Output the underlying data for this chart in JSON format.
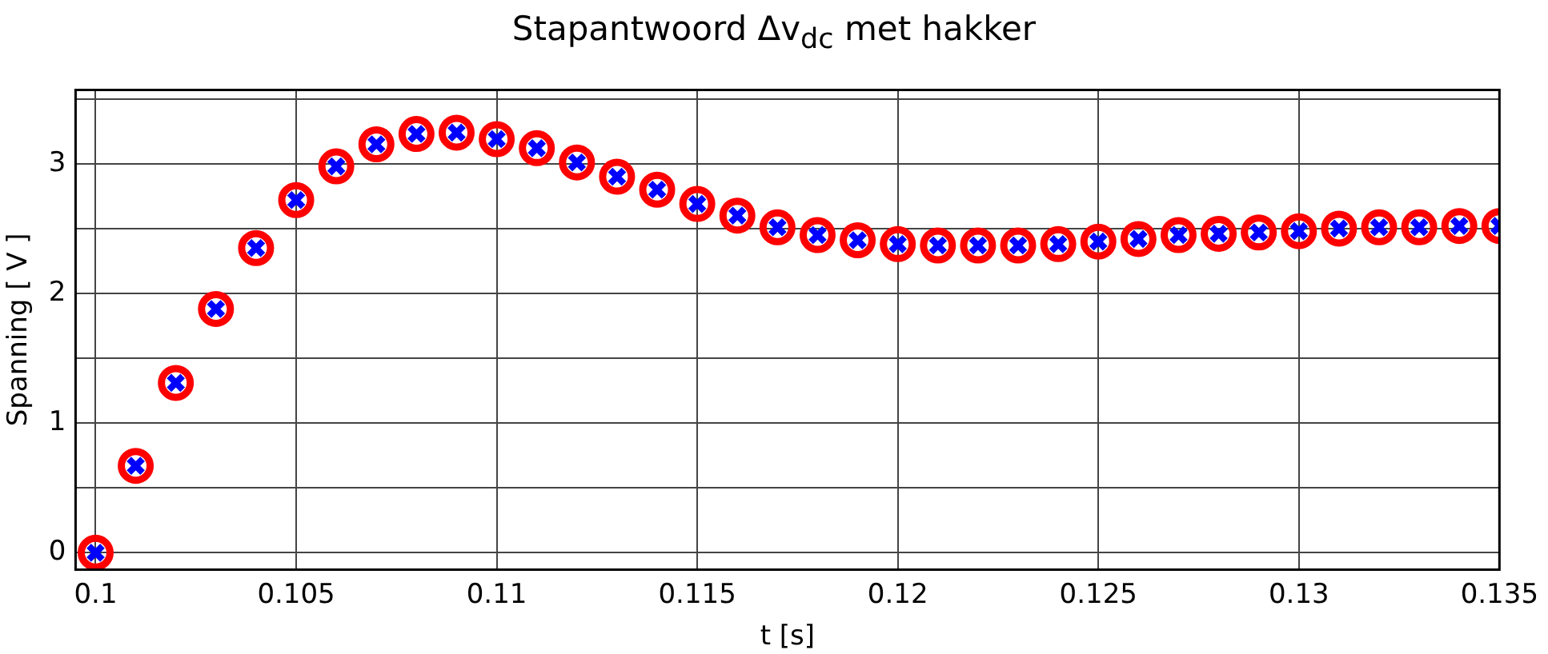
{
  "chart_data": {
    "type": "scatter",
    "title": "Stapantwoord Δv$_{dc}$ met hakker",
    "xlabel": "t [s]",
    "ylabel": "Spanning [ V ]",
    "x": [
      0.1,
      0.101,
      0.102,
      0.103,
      0.104,
      0.105,
      0.106,
      0.107,
      0.108,
      0.109,
      0.11,
      0.111,
      0.112,
      0.113,
      0.114,
      0.115,
      0.116,
      0.117,
      0.118,
      0.119,
      0.12,
      0.121,
      0.122,
      0.123,
      0.124,
      0.125,
      0.126,
      0.127,
      0.128,
      0.129,
      0.13,
      0.131,
      0.132,
      0.133,
      0.134,
      0.135
    ],
    "series": [
      {
        "color": "#ff0000",
        "marker": "circle",
        "values": [
          0,
          0.67,
          1.31,
          1.88,
          2.35,
          2.72,
          2.98,
          3.15,
          3.23,
          3.24,
          3.19,
          3.12,
          3.01,
          2.9,
          2.8,
          2.69,
          2.6,
          2.51,
          2.45,
          2.41,
          2.38,
          2.37,
          2.37,
          2.37,
          2.38,
          2.4,
          2.42,
          2.45,
          2.46,
          2.47,
          2.48,
          2.5,
          2.51,
          2.51,
          2.52,
          2.52
        ]
      },
      {
        "color": "#0000ff",
        "marker": "cross",
        "values": [
          0,
          0.67,
          1.31,
          1.88,
          2.35,
          2.72,
          2.98,
          3.15,
          3.23,
          3.24,
          3.19,
          3.12,
          3.01,
          2.9,
          2.8,
          2.69,
          2.6,
          2.51,
          2.45,
          2.41,
          2.38,
          2.37,
          2.37,
          2.37,
          2.38,
          2.4,
          2.42,
          2.45,
          2.46,
          2.47,
          2.48,
          2.5,
          2.51,
          2.51,
          2.52,
          2.52
        ]
      }
    ],
    "xlim": [
      0.0995,
      0.135
    ],
    "xticks": [
      0.1,
      0.105,
      0.11,
      0.115,
      0.12,
      0.125,
      0.13,
      0.135
    ],
    "ylim": [
      -0.13,
      3.57
    ],
    "yticks": [
      0,
      {
        "value": 0.5,
        "label": null
      },
      1,
      {
        "value": 1.5,
        "label": null
      },
      2,
      {
        "value": 2.5,
        "label": null
      },
      3,
      {
        "value": 3.5,
        "label": null
      }
    ],
    "grid": true,
    "legend": false
  }
}
